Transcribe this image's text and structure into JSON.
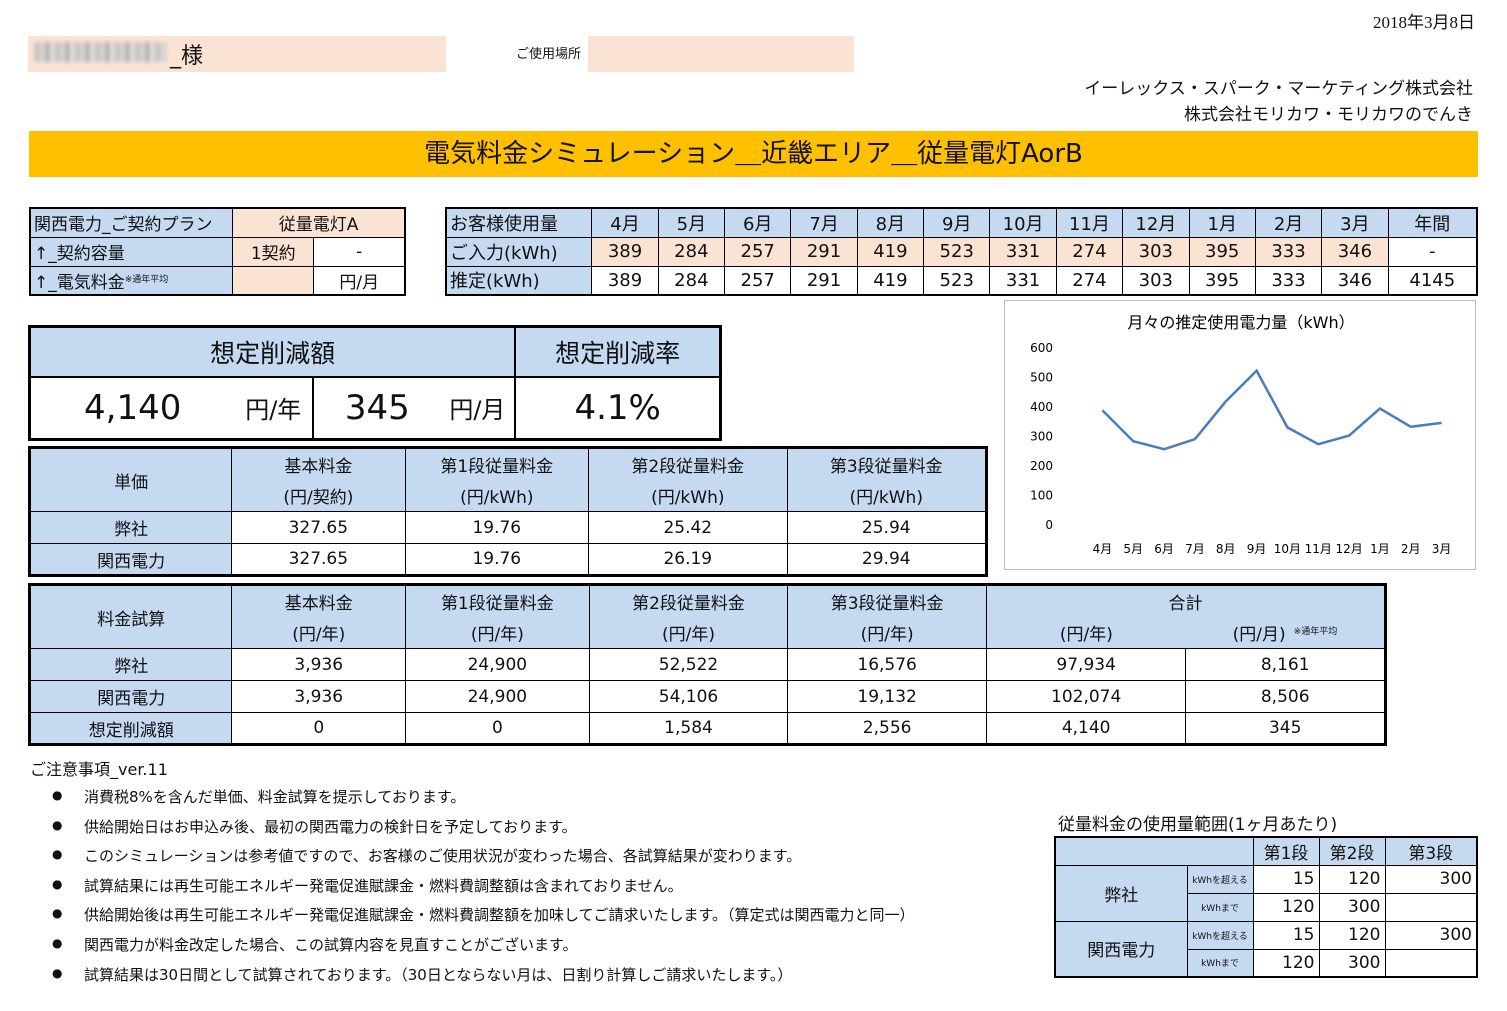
{
  "header": {
    "date": "2018年3月8日",
    "customer_suffix": "_様",
    "usage_place_label": "ご使用場所",
    "company_line1": "イーレックス・スパーク・マーケティング株式会社",
    "company_line2": "株式会社モリカワ・モリカワのでんき",
    "title": "電気料金シミュレーション＿近畿エリア＿従量電灯AorB"
  },
  "plan": {
    "r1_label": "関西電力_ご契約プラン",
    "r1_value": "従量電灯A",
    "r2_label": "↑_契約容量",
    "r2_a": "1契約",
    "r2_b": "-",
    "r3_label": "↑_電気料金",
    "r3_note": "※通年平均",
    "r3_a": "",
    "r3_b": "円/月"
  },
  "usage": {
    "header_label": "お客様使用量",
    "months": [
      "4月",
      "5月",
      "6月",
      "7月",
      "8月",
      "9月",
      "10月",
      "11月",
      "12月",
      "1月",
      "2月",
      "3月",
      "年間"
    ],
    "input_label": "ご入力(kWh)",
    "input": [
      "389",
      "284",
      "257",
      "291",
      "419",
      "523",
      "331",
      "274",
      "303",
      "395",
      "333",
      "346",
      "-"
    ],
    "estimate_label": "推定(kWh)",
    "estimate": [
      "389",
      "284",
      "257",
      "291",
      "419",
      "523",
      "331",
      "274",
      "303",
      "395",
      "333",
      "346",
      "4145"
    ]
  },
  "summary": {
    "amount_header": "想定削減額",
    "rate_header": "想定削減率",
    "yearly_value": "4,140",
    "yearly_unit": "円/年",
    "monthly_value": "345",
    "monthly_unit": "円/月",
    "rate_value": "4.1%"
  },
  "unit_price": {
    "corner": "単価",
    "h1": "基本料金",
    "h1u": "(円/契約)",
    "h2": "第1段従量料金",
    "h2u": "(円/kWh)",
    "h3": "第2段従量料金",
    "h3u": "(円/kWh)",
    "h4": "第3段従量料金",
    "h4u": "(円/kWh)",
    "rows": [
      {
        "label": "弊社",
        "v": [
          "327.65",
          "19.76",
          "25.42",
          "25.94"
        ]
      },
      {
        "label": "関西電力",
        "v": [
          "327.65",
          "19.76",
          "26.19",
          "29.94"
        ]
      }
    ]
  },
  "calc": {
    "corner": "料金試算",
    "h1": "基本料金",
    "h1u": "(円/年)",
    "h2": "第1段従量料金",
    "h2u": "(円/年)",
    "h3": "第2段従量料金",
    "h3u": "(円/年)",
    "h4": "第3段従量料金",
    "h4u": "(円/年)",
    "h5": "合計",
    "h5u1": "(円/年)",
    "h5u2": "(円/月)",
    "h5note": "※通年平均",
    "rows": [
      {
        "label": "弊社",
        "v": [
          "3,936",
          "24,900",
          "52,522",
          "16,576",
          "97,934",
          "8,161"
        ]
      },
      {
        "label": "関西電力",
        "v": [
          "3,936",
          "24,900",
          "54,106",
          "19,132",
          "102,074",
          "8,506"
        ]
      },
      {
        "label": "想定削減額",
        "v": [
          "0",
          "0",
          "1,584",
          "2,556",
          "4,140",
          "345"
        ]
      }
    ]
  },
  "notes": {
    "title": "ご注意事項_ver.11",
    "items": [
      "消費税8%を含んだ単価、料金試算を提示しております。",
      "供給開始日はお申込み後、最初の関西電力の検針日を予定しております。",
      "このシミュレーションは参考値ですので、お客様のご使用状況が変わった場合、各試算結果が変わります。",
      "試算結果には再生可能エネルギー発電促進賦課金・燃料費調整額は含まれておりません。",
      "供給開始後は再生可能エネルギー発電促進賦課金・燃料費調整額を加味してご請求いたします。（算定式は関西電力と同一）",
      "関西電力が料金改定した場合、この試算内容を見直すことがございます。",
      "試算結果は30日間として試算されております。（30日とならない月は、日割り計算しご請求いたします。）"
    ]
  },
  "range": {
    "title": "従量料金の使用量範囲(1ヶ月あたり)",
    "h1": "第1段",
    "h2": "第2段",
    "h3": "第3段",
    "over": "kWhを超える",
    "upto": "kWhまで",
    "rows": [
      {
        "label": "弊社",
        "over": [
          "15",
          "120",
          "300"
        ],
        "upto": [
          "120",
          "300",
          ""
        ]
      },
      {
        "label": "関西電力",
        "over": [
          "15",
          "120",
          "300"
        ],
        "upto": [
          "120",
          "300",
          ""
        ]
      }
    ]
  },
  "chart_data": {
    "type": "line",
    "title": "月々の推定使用電力量（kWh）",
    "categories": [
      "4月",
      "5月",
      "6月",
      "7月",
      "8月",
      "9月",
      "10月",
      "11月",
      "12月",
      "1月",
      "2月",
      "3月"
    ],
    "values": [
      389,
      284,
      257,
      291,
      419,
      523,
      331,
      274,
      303,
      395,
      333,
      346
    ],
    "yticks": [
      "0",
      "100",
      "200",
      "300",
      "400",
      "500",
      "600"
    ],
    "ylim": [
      0,
      600
    ],
    "color": "#4a7ebb",
    "grid": false,
    "legend": false
  }
}
